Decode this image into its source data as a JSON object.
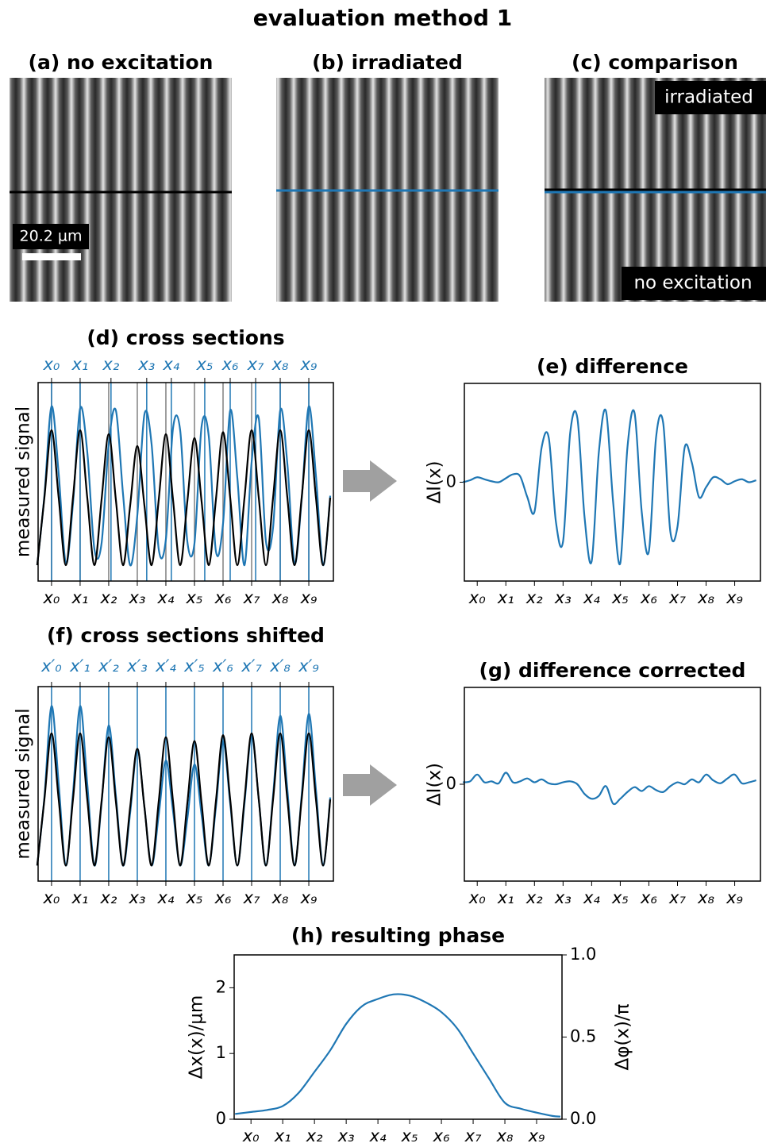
{
  "title": "evaluation method 1",
  "images": [
    {
      "title": "(a) no excitation",
      "scale_bar": "20.2 µm"
    },
    {
      "title": "(b) irradiated"
    },
    {
      "title": "(c) comparison",
      "labels": [
        "irradiated",
        "no excitation"
      ]
    }
  ],
  "chart_data": [
    {
      "type": "line",
      "title": "(d) cross sections",
      "ylabel": "measured signal",
      "xlim": [
        -0.47,
        9.86
      ],
      "ylim": [
        0,
        1
      ],
      "xticks": [
        {
          "value": 0,
          "label": "x₀"
        },
        {
          "value": 1,
          "label": "x₁"
        },
        {
          "value": 2,
          "label": "x₂"
        },
        {
          "value": 3,
          "label": "x₃"
        },
        {
          "value": 4,
          "label": "x₄"
        },
        {
          "value": 5,
          "label": "x₅"
        },
        {
          "value": 6,
          "label": "x₆"
        },
        {
          "value": 7,
          "label": "x₇"
        },
        {
          "value": 8,
          "label": "x₈"
        },
        {
          "value": 9,
          "label": "x₉"
        }
      ],
      "xtick_line_color": "#808080",
      "x2ticks": [
        {
          "value": 0,
          "label": "x₀"
        },
        {
          "value": 1,
          "label": "x₁"
        },
        {
          "value": 2.08,
          "label": "x₂"
        },
        {
          "value": 3.33,
          "label": "x₃"
        },
        {
          "value": 4.19,
          "label": "x₄"
        },
        {
          "value": 5.36,
          "label": "x₅"
        },
        {
          "value": 6.25,
          "label": "x₆"
        },
        {
          "value": 7.14,
          "label": "x₇"
        },
        {
          "value": 8,
          "label": "x₈"
        },
        {
          "value": 9,
          "label": "x₉"
        }
      ],
      "x2ticks_color": "#1f77b4",
      "x": [
        -0.5,
        -0.25,
        0,
        0.25,
        0.5,
        0.75,
        1,
        1.25,
        1.5,
        1.75,
        2,
        2.25,
        2.5,
        2.75,
        3,
        3.25,
        3.5,
        3.75,
        4,
        4.25,
        4.5,
        4.75,
        5,
        5.25,
        5.5,
        5.75,
        6,
        6.25,
        6.5,
        6.75,
        7,
        7.25,
        7.5,
        7.75,
        8,
        8.25,
        8.5,
        8.75,
        9,
        9.25,
        9.5,
        9.75
      ],
      "series": [
        {
          "color": "#1f77b4",
          "values": [
            0.08,
            0.43,
            0.88,
            0.54,
            0.09,
            0.39,
            0.87,
            0.65,
            0.16,
            0.19,
            0.69,
            0.86,
            0.44,
            0.08,
            0.33,
            0.84,
            0.69,
            0.16,
            0.21,
            0.77,
            0.76,
            0.2,
            0.19,
            0.78,
            0.73,
            0.15,
            0.29,
            0.86,
            0.52,
            0.08,
            0.6,
            0.82,
            0.2,
            0.27,
            0.86,
            0.59,
            0.09,
            0.41,
            0.88,
            0.53,
            0.08,
            0.43
          ]
        },
        {
          "color": "#000000",
          "values": [
            0.08,
            0.42,
            0.76,
            0.42,
            0.08,
            0.42,
            0.76,
            0.42,
            0.08,
            0.41,
            0.74,
            0.41,
            0.08,
            0.38,
            0.68,
            0.38,
            0.08,
            0.41,
            0.74,
            0.41,
            0.08,
            0.4,
            0.72,
            0.4,
            0.08,
            0.41,
            0.75,
            0.42,
            0.08,
            0.42,
            0.76,
            0.42,
            0.08,
            0.42,
            0.76,
            0.42,
            0.08,
            0.42,
            0.76,
            0.42,
            0.08,
            0.42
          ]
        }
      ]
    },
    {
      "type": "line",
      "title": "(e) difference",
      "ylabel": "ΔI(x)",
      "xlim": [
        -0.45,
        9.9
      ],
      "ylim": [
        -1,
        1
      ],
      "yticks": [
        0
      ],
      "xticks": [
        {
          "value": 0,
          "label": "x₀"
        },
        {
          "value": 1,
          "label": "x₁"
        },
        {
          "value": 2,
          "label": "x₂"
        },
        {
          "value": 3,
          "label": "x₃"
        },
        {
          "value": 4,
          "label": "x₄"
        },
        {
          "value": 5,
          "label": "x₅"
        },
        {
          "value": 6,
          "label": "x₆"
        },
        {
          "value": 7,
          "label": "x₇"
        },
        {
          "value": 8,
          "label": "x₈"
        },
        {
          "value": 9,
          "label": "x₉"
        }
      ],
      "x": [
        -0.5,
        -0.25,
        0,
        0.25,
        0.5,
        0.75,
        1,
        1.25,
        1.5,
        1.75,
        2,
        2.25,
        2.5,
        2.75,
        3,
        3.25,
        3.5,
        3.75,
        4,
        4.25,
        4.5,
        4.75,
        5,
        5.25,
        5.5,
        5.75,
        6,
        6.25,
        6.5,
        6.75,
        7,
        7.25,
        7.5,
        7.75,
        8,
        8.25,
        8.5,
        8.75,
        9,
        9.25,
        9.5,
        9.75
      ],
      "series": [
        {
          "color": "#1f77b4",
          "values": [
            0.0,
            0.02,
            0.05,
            0.03,
            0.01,
            0.0,
            0.04,
            0.08,
            0.06,
            -0.15,
            -0.3,
            0.35,
            0.45,
            -0.4,
            -0.6,
            0.5,
            0.65,
            -0.35,
            -0.8,
            0.3,
            0.72,
            -0.2,
            -0.82,
            0.35,
            0.7,
            -0.3,
            -0.7,
            0.45,
            0.6,
            -0.5,
            -0.45,
            0.35,
            0.2,
            -0.15,
            -0.05,
            0.05,
            0.03,
            -0.02,
            0.01,
            0.03,
            0.0,
            0.02
          ]
        }
      ]
    },
    {
      "type": "line",
      "title": "(f) cross sections shifted",
      "ylabel": "measured signal",
      "xlim": [
        -0.47,
        9.86
      ],
      "ylim": [
        0,
        1
      ],
      "xticks": [
        {
          "value": 0,
          "label": "x₀"
        },
        {
          "value": 1,
          "label": "x₁"
        },
        {
          "value": 2,
          "label": "x₂"
        },
        {
          "value": 3,
          "label": "x₃"
        },
        {
          "value": 4,
          "label": "x₄"
        },
        {
          "value": 5,
          "label": "x₅"
        },
        {
          "value": 6,
          "label": "x₆"
        },
        {
          "value": 7,
          "label": "x₇"
        },
        {
          "value": 8,
          "label": "x₈"
        },
        {
          "value": 9,
          "label": "x₉"
        }
      ],
      "x2ticks": [
        {
          "value": 0,
          "label": "x′₀"
        },
        {
          "value": 1,
          "label": "x′₁"
        },
        {
          "value": 2,
          "label": "x′₂"
        },
        {
          "value": 3,
          "label": "x′₃"
        },
        {
          "value": 4,
          "label": "x′₄"
        },
        {
          "value": 5,
          "label": "x′₅"
        },
        {
          "value": 6,
          "label": "x′₆"
        },
        {
          "value": 7,
          "label": "x′₇"
        },
        {
          "value": 8,
          "label": "x′₈"
        },
        {
          "value": 9,
          "label": "x′₉"
        }
      ],
      "x2ticks_color": "#1f77b4",
      "x": [
        -0.5,
        -0.25,
        0,
        0.25,
        0.5,
        0.75,
        1,
        1.25,
        1.5,
        1.75,
        2,
        2.25,
        2.5,
        2.75,
        3,
        3.25,
        3.5,
        3.75,
        4,
        4.25,
        4.5,
        4.75,
        5,
        5.25,
        5.5,
        5.75,
        6,
        6.25,
        6.5,
        6.75,
        7,
        7.25,
        7.5,
        7.75,
        8,
        8.25,
        8.5,
        8.75,
        9,
        9.25,
        9.5,
        9.75
      ],
      "series": [
        {
          "color": "#1f77b4",
          "values": [
            0.08,
            0.43,
            0.9,
            0.5,
            0.08,
            0.45,
            0.9,
            0.5,
            0.08,
            0.4,
            0.8,
            0.44,
            0.08,
            0.35,
            0.68,
            0.38,
            0.08,
            0.34,
            0.62,
            0.36,
            0.08,
            0.32,
            0.6,
            0.34,
            0.08,
            0.38,
            0.72,
            0.4,
            0.08,
            0.4,
            0.75,
            0.42,
            0.08,
            0.44,
            0.85,
            0.47,
            0.08,
            0.44,
            0.86,
            0.47,
            0.08,
            0.43
          ]
        },
        {
          "color": "#000000",
          "values": [
            0.08,
            0.42,
            0.76,
            0.42,
            0.08,
            0.42,
            0.76,
            0.42,
            0.08,
            0.41,
            0.74,
            0.41,
            0.08,
            0.38,
            0.68,
            0.38,
            0.08,
            0.41,
            0.74,
            0.41,
            0.08,
            0.4,
            0.72,
            0.4,
            0.08,
            0.41,
            0.75,
            0.42,
            0.08,
            0.42,
            0.76,
            0.42,
            0.08,
            0.42,
            0.76,
            0.42,
            0.08,
            0.42,
            0.76,
            0.42,
            0.08,
            0.42
          ]
        }
      ]
    },
    {
      "type": "line",
      "title": "(g) difference corrected",
      "ylabel": "ΔI(x)",
      "xlim": [
        -0.45,
        9.9
      ],
      "ylim": [
        -1,
        1
      ],
      "yticks": [
        0
      ],
      "xticks": [
        {
          "value": 0,
          "label": "x₀"
        },
        {
          "value": 1,
          "label": "x₁"
        },
        {
          "value": 2,
          "label": "x₂"
        },
        {
          "value": 3,
          "label": "x₃"
        },
        {
          "value": 4,
          "label": "x₄"
        },
        {
          "value": 5,
          "label": "x₅"
        },
        {
          "value": 6,
          "label": "x₆"
        },
        {
          "value": 7,
          "label": "x₇"
        },
        {
          "value": 8,
          "label": "x₈"
        },
        {
          "value": 9,
          "label": "x₉"
        }
      ],
      "x": [
        -0.5,
        -0.25,
        0,
        0.25,
        0.5,
        0.75,
        1,
        1.25,
        1.5,
        1.75,
        2,
        2.25,
        2.5,
        2.75,
        3,
        3.25,
        3.5,
        3.75,
        4,
        4.25,
        4.5,
        4.75,
        5,
        5.25,
        5.5,
        5.75,
        6,
        6.25,
        6.5,
        6.75,
        7,
        7.25,
        7.5,
        7.75,
        8,
        8.25,
        8.5,
        8.75,
        9,
        9.25,
        9.5,
        9.75
      ],
      "series": [
        {
          "color": "#1f77b4",
          "values": [
            0.02,
            0.03,
            0.1,
            0.02,
            0.03,
            0.01,
            0.12,
            0.02,
            0.03,
            0.06,
            0.02,
            0.05,
            0.01,
            0.0,
            0.02,
            0.03,
            0.0,
            -0.1,
            -0.15,
            -0.12,
            -0.02,
            -0.2,
            -0.15,
            -0.08,
            -0.03,
            -0.07,
            -0.02,
            -0.06,
            -0.08,
            -0.02,
            0.02,
            0.0,
            0.05,
            0.02,
            0.1,
            0.04,
            0.01,
            0.06,
            0.1,
            0.01,
            0.02,
            0.04
          ]
        }
      ]
    },
    {
      "type": "line",
      "title": "(h) resulting phase",
      "ylabel": "Δx(x)/µm",
      "y2label": "Δφ(x)/π",
      "xlim": [
        -0.53,
        9.8
      ],
      "ylim": [
        0,
        2.5
      ],
      "yticks": [
        0,
        1,
        2
      ],
      "y2lim": [
        0,
        1
      ],
      "y2ticks": [
        {
          "value": 0,
          "label": "0.0"
        },
        {
          "value": 0.5,
          "label": "0.5"
        },
        {
          "value": 1,
          "label": "1.0"
        }
      ],
      "xticks": [
        {
          "value": 0,
          "label": "x₀"
        },
        {
          "value": 1,
          "label": "x₁"
        },
        {
          "value": 2,
          "label": "x₂"
        },
        {
          "value": 3,
          "label": "x₃"
        },
        {
          "value": 4,
          "label": "x₄"
        },
        {
          "value": 5,
          "label": "x₅"
        },
        {
          "value": 6,
          "label": "x₆"
        },
        {
          "value": 7,
          "label": "x₇"
        },
        {
          "value": 8,
          "label": "x₈"
        },
        {
          "value": 9,
          "label": "x₉"
        }
      ],
      "x": [
        -0.5,
        0,
        0.5,
        1,
        1.5,
        2,
        2.5,
        3,
        3.5,
        4,
        4.5,
        5,
        5.5,
        6,
        6.5,
        7,
        7.5,
        8,
        8.5,
        9,
        9.5,
        9.75
      ],
      "series": [
        {
          "color": "#1f77b4",
          "values": [
            0.08,
            0.11,
            0.14,
            0.2,
            0.4,
            0.72,
            1.05,
            1.45,
            1.72,
            1.83,
            1.9,
            1.88,
            1.78,
            1.63,
            1.38,
            1.0,
            0.62,
            0.25,
            0.16,
            0.1,
            0.05,
            0.04
          ]
        }
      ]
    }
  ]
}
